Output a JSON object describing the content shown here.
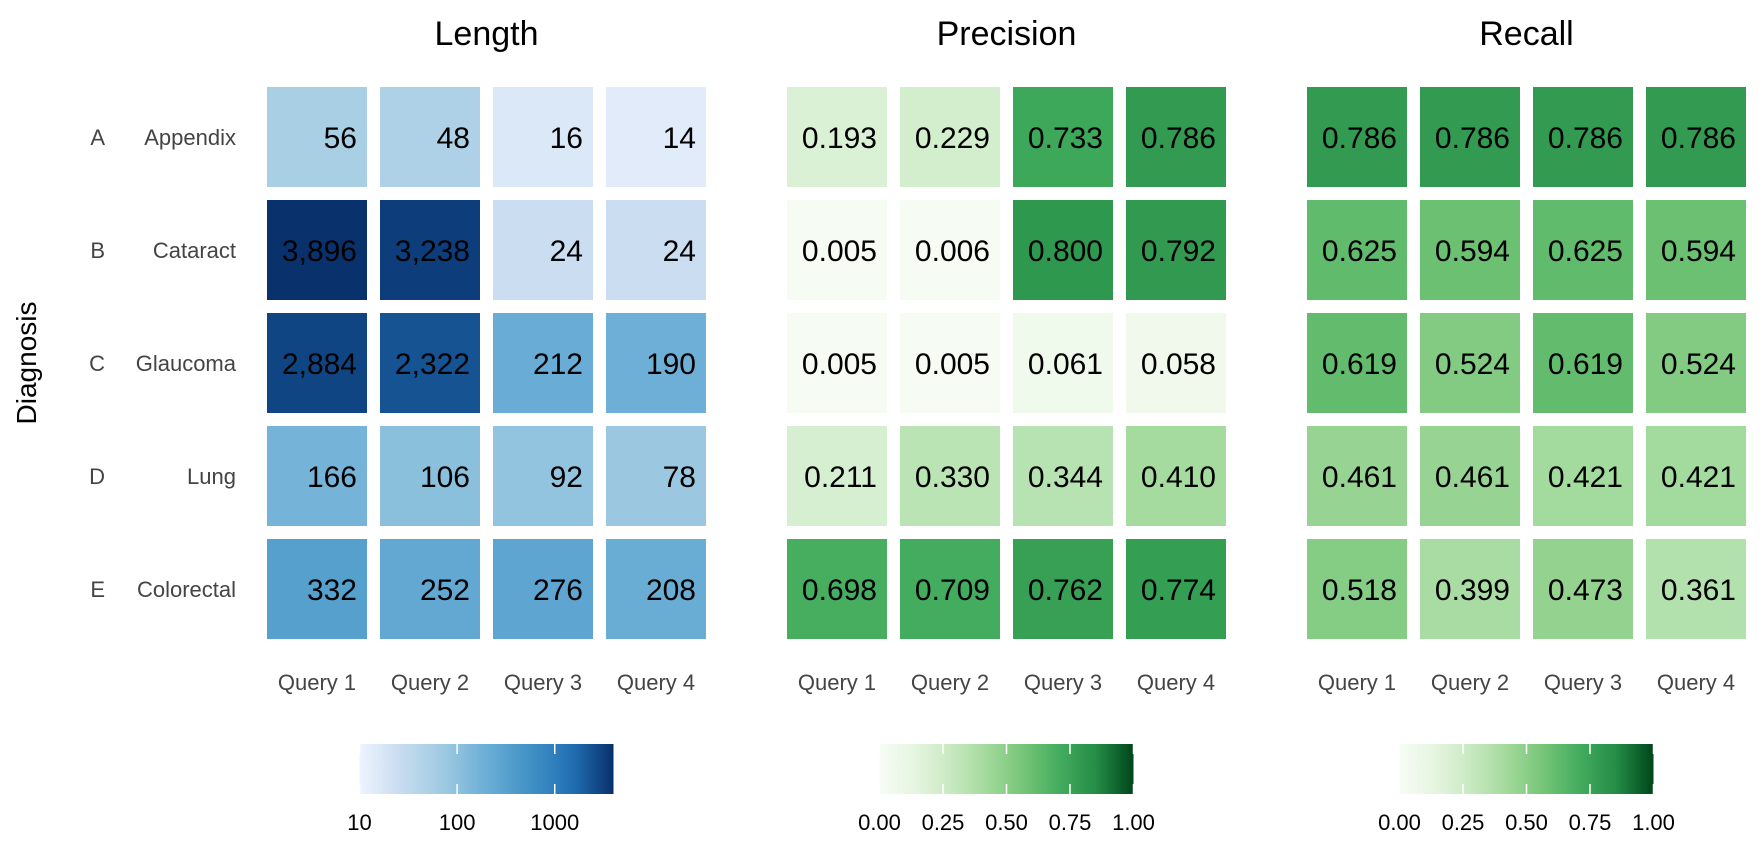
{
  "chart_data": {
    "type": "heatmap",
    "ylabel": "Diagnosis",
    "rows": [
      {
        "letter": "A",
        "name": "Appendix"
      },
      {
        "letter": "B",
        "name": "Cataract"
      },
      {
        "letter": "C",
        "name": "Glaucoma"
      },
      {
        "letter": "D",
        "name": "Lung"
      },
      {
        "letter": "E",
        "name": "Colorectal"
      }
    ],
    "panels": [
      {
        "title": "Length",
        "columns": [
          "Query 1",
          "Query 2",
          "Query 3",
          "Query 4"
        ],
        "values": [
          [
            56,
            48,
            16,
            14
          ],
          [
            3896,
            3238,
            24,
            24
          ],
          [
            2884,
            2322,
            212,
            190
          ],
          [
            166,
            106,
            92,
            78
          ],
          [
            332,
            252,
            276,
            208
          ]
        ],
        "labels": [
          [
            "56",
            "48",
            "16",
            "14"
          ],
          [
            "3,896",
            "3,238",
            "24",
            "24"
          ],
          [
            "2,884",
            "2,322",
            "212",
            "190"
          ],
          [
            "166",
            "106",
            "92",
            "78"
          ],
          [
            "332",
            "252",
            "276",
            "208"
          ]
        ],
        "scale": "log",
        "domain": [
          10,
          4000
        ],
        "palette": [
          "#eef3ff",
          "#c6dbef",
          "#9ecae1",
          "#6baed6",
          "#4292c6",
          "#2171b5",
          "#08306b"
        ],
        "legend_ticks": [
          10,
          100,
          1000
        ],
        "legend_tick_labels": [
          "10",
          "100",
          "1000"
        ]
      },
      {
        "title": "Precision",
        "columns": [
          "Query 1",
          "Query 2",
          "Query 3",
          "Query 4"
        ],
        "values": [
          [
            0.193,
            0.229,
            0.733,
            0.786
          ],
          [
            0.005,
            0.006,
            0.8,
            0.792
          ],
          [
            0.005,
            0.005,
            0.061,
            0.058
          ],
          [
            0.211,
            0.33,
            0.344,
            0.41
          ],
          [
            0.698,
            0.709,
            0.762,
            0.774
          ]
        ],
        "labels": [
          [
            "0.193",
            "0.229",
            "0.733",
            "0.786"
          ],
          [
            "0.005",
            "0.006",
            "0.800",
            "0.792"
          ],
          [
            "0.005",
            "0.005",
            "0.061",
            "0.058"
          ],
          [
            "0.211",
            "0.330",
            "0.344",
            "0.410"
          ],
          [
            "0.698",
            "0.709",
            "0.762",
            "0.774"
          ]
        ],
        "scale": "linear",
        "domain": [
          0,
          1
        ],
        "palette": [
          "#f7fcf5",
          "#e5f5e0",
          "#c7e9c0",
          "#a1d99b",
          "#74c476",
          "#41ab5d",
          "#238b45",
          "#00441b"
        ],
        "legend_ticks": [
          0,
          0.25,
          0.5,
          0.75,
          1
        ],
        "legend_tick_labels": [
          "0.00",
          "0.25",
          "0.50",
          "0.75",
          "1.00"
        ]
      },
      {
        "title": "Recall",
        "columns": [
          "Query 1",
          "Query 2",
          "Query 3",
          "Query 4"
        ],
        "values": [
          [
            0.786,
            0.786,
            0.786,
            0.786
          ],
          [
            0.625,
            0.594,
            0.625,
            0.594
          ],
          [
            0.619,
            0.524,
            0.619,
            0.524
          ],
          [
            0.461,
            0.461,
            0.421,
            0.421
          ],
          [
            0.518,
            0.399,
            0.473,
            0.361
          ]
        ],
        "labels": [
          [
            "0.786",
            "0.786",
            "0.786",
            "0.786"
          ],
          [
            "0.625",
            "0.594",
            "0.625",
            "0.594"
          ],
          [
            "0.619",
            "0.524",
            "0.619",
            "0.524"
          ],
          [
            "0.461",
            "0.461",
            "0.421",
            "0.421"
          ],
          [
            "0.518",
            "0.399",
            "0.473",
            "0.361"
          ]
        ],
        "scale": "linear",
        "domain": [
          0,
          1
        ],
        "palette": [
          "#f7fcf5",
          "#e5f5e0",
          "#c7e9c0",
          "#a1d99b",
          "#74c476",
          "#41ab5d",
          "#238b45",
          "#00441b"
        ],
        "legend_ticks": [
          0,
          0.25,
          0.5,
          0.75,
          1
        ],
        "legend_tick_labels": [
          "0.00",
          "0.25",
          "0.50",
          "0.75",
          "1.00"
        ]
      }
    ]
  }
}
